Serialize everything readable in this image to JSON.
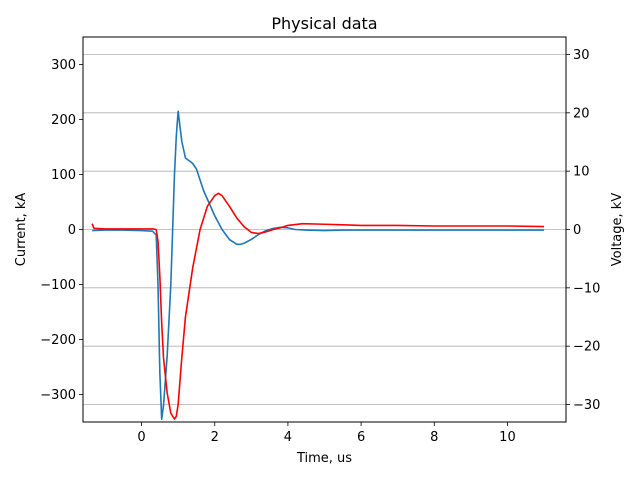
{
  "chart_data": {
    "type": "line",
    "title": "Physical data",
    "xlabel": "Time, us",
    "ylabel_left": "Current, kA",
    "ylabel_right": "Voltage, kV",
    "xlim": [
      -1.6,
      11.6
    ],
    "ylim_left": [
      -350,
      350
    ],
    "ylim_right": [
      -33,
      33
    ],
    "x_ticks": [
      0,
      2,
      4,
      6,
      8,
      10
    ],
    "x_tick_labels": [
      "0",
      "2",
      "4",
      "6",
      "8",
      "10"
    ],
    "y_left_ticks": [
      -300,
      -200,
      -100,
      0,
      100,
      200,
      300
    ],
    "y_left_tick_labels": [
      "−300",
      "−200",
      "−100",
      "0",
      "100",
      "200",
      "300"
    ],
    "y_right_ticks": [
      -30,
      -20,
      -10,
      0,
      10,
      20,
      30
    ],
    "y_right_tick_labels": [
      "−30",
      "−20",
      "−10",
      "0",
      "10",
      "20",
      "30"
    ],
    "grid": "horizontal lines at right-axis ticks",
    "series": [
      {
        "axis": "left",
        "color": "#1f77b4",
        "x": [
          -1.35,
          -1.0,
          -0.5,
          0.0,
          0.3,
          0.4,
          0.45,
          0.5,
          0.55,
          0.6,
          0.7,
          0.8,
          0.85,
          0.9,
          0.95,
          1.0,
          1.1,
          1.2,
          1.4,
          1.5,
          1.6,
          1.7,
          1.8,
          2.0,
          2.2,
          2.4,
          2.6,
          2.7,
          2.8,
          3.0,
          3.2,
          3.4,
          3.6,
          3.8,
          4.0,
          4.2,
          4.5,
          5.0,
          5.5,
          6.0,
          7.0,
          8.0,
          9.0,
          10.0,
          11.0
        ],
        "values": [
          -2,
          -1,
          -1,
          -2,
          -3,
          -10,
          -100,
          -260,
          -345,
          -320,
          -230,
          -100,
          0,
          100,
          170,
          215,
          160,
          130,
          120,
          110,
          90,
          70,
          55,
          25,
          0,
          -18,
          -27,
          -27,
          -25,
          -18,
          -9,
          -2,
          2,
          4,
          3,
          0,
          -1,
          -2,
          -1,
          -1,
          -1,
          -1,
          -1,
          -1,
          -1
        ]
      },
      {
        "axis": "right",
        "color": "#ff0000",
        "x": [
          -1.35,
          -1.3,
          -1.0,
          -0.5,
          0.0,
          0.3,
          0.4,
          0.45,
          0.5,
          0.55,
          0.6,
          0.7,
          0.8,
          0.9,
          0.95,
          1.0,
          1.05,
          1.1,
          1.2,
          1.4,
          1.6,
          1.8,
          2.0,
          2.1,
          2.2,
          2.4,
          2.6,
          2.8,
          3.0,
          3.2,
          3.4,
          3.6,
          3.8,
          4.0,
          4.4,
          5.0,
          5.5,
          6.0,
          7.0,
          8.0,
          9.0,
          10.0,
          11.0
        ],
        "values": [
          1.0,
          0.2,
          0.1,
          0.1,
          0.1,
          0.1,
          0.0,
          -2.0,
          -8.0,
          -16.0,
          -22.0,
          -28.0,
          -31.5,
          -32.5,
          -32.0,
          -30.0,
          -26.0,
          -22.0,
          -15.0,
          -6.5,
          0.0,
          4.0,
          5.8,
          6.2,
          5.8,
          4.0,
          2.0,
          0.5,
          -0.5,
          -0.7,
          -0.4,
          0.0,
          0.3,
          0.7,
          1.0,
          0.9,
          0.8,
          0.7,
          0.7,
          0.6,
          0.6,
          0.6,
          0.5
        ]
      }
    ]
  }
}
